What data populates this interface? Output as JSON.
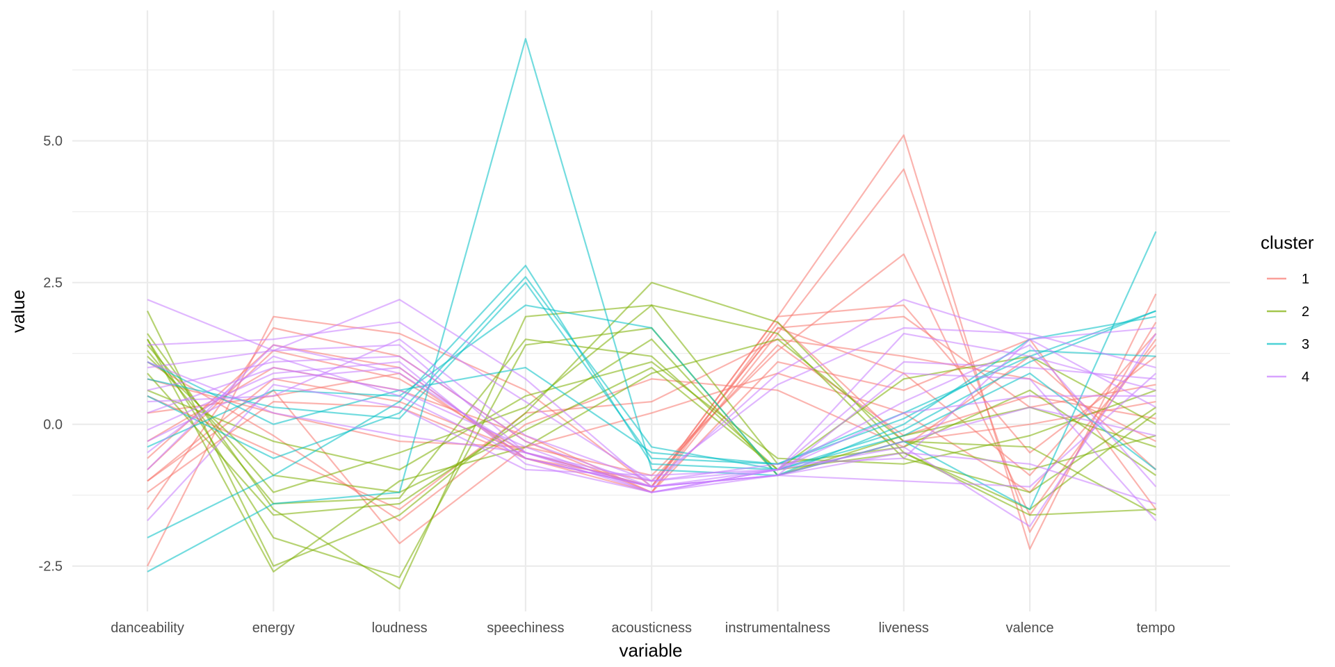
{
  "chart_data": {
    "type": "line",
    "subtype": "parallel-coordinates",
    "categories": [
      "danceability",
      "energy",
      "loudness",
      "speechiness",
      "acousticness",
      "instrumentalness",
      "liveness",
      "valence",
      "tempo"
    ],
    "xlabel": "variable",
    "ylabel": "value",
    "ylim": [
      -3.3,
      7.3
    ],
    "yticks": [
      -2.5,
      0.0,
      2.5,
      5.0
    ],
    "ytick_labels": [
      "-2.5",
      "0.0",
      "2.5",
      "5.0"
    ],
    "grid": true,
    "legend": {
      "title": "cluster",
      "position": "right",
      "entries": [
        {
          "label": "1",
          "color": "#F8766D"
        },
        {
          "label": "2",
          "color": "#7CAE00"
        },
        {
          "label": "3",
          "color": "#00BFC4"
        },
        {
          "label": "4",
          "color": "#C77CFF"
        }
      ]
    },
    "series": [
      {
        "cluster": "1",
        "values": [
          -2.5,
          1.9,
          1.6,
          0.6,
          -1.1,
          1.9,
          5.1,
          -2.2,
          2.3
        ]
      },
      {
        "cluster": "1",
        "values": [
          -1.5,
          1.7,
          1.2,
          -0.3,
          -1.2,
          1.6,
          4.5,
          -1.9,
          1.8
        ]
      },
      {
        "cluster": "1",
        "values": [
          -1.0,
          0.6,
          -2.1,
          -0.4,
          -0.9,
          1.3,
          3.0,
          -1.6,
          1.5
        ]
      },
      {
        "cluster": "1",
        "values": [
          -0.8,
          1.3,
          0.8,
          -0.5,
          -1.1,
          1.9,
          2.1,
          -0.5,
          1.2
        ]
      },
      {
        "cluster": "1",
        "values": [
          -1.2,
          0.4,
          0.3,
          -0.6,
          -1.1,
          1.7,
          1.9,
          0.3,
          0.7
        ]
      },
      {
        "cluster": "1",
        "values": [
          0.5,
          -0.5,
          -1.5,
          0.2,
          0.4,
          1.5,
          1.2,
          0.8,
          -0.3
        ]
      },
      {
        "cluster": "1",
        "values": [
          -0.3,
          1.0,
          0.6,
          -0.2,
          -1.2,
          1.1,
          0.6,
          1.5,
          -1.5
        ]
      },
      {
        "cluster": "1",
        "values": [
          0.8,
          0.2,
          -0.3,
          -0.4,
          0.2,
          0.9,
          0.2,
          -1.2,
          1.4
        ]
      },
      {
        "cluster": "1",
        "values": [
          -0.6,
          1.4,
          1.0,
          -0.6,
          -1.0,
          1.4,
          -0.2,
          0.5,
          0.1
        ]
      },
      {
        "cluster": "1",
        "values": [
          1.1,
          -0.2,
          -1.7,
          0.0,
          0.8,
          0.6,
          -0.4,
          1.2,
          -0.8
        ]
      },
      {
        "cluster": "1",
        "values": [
          -1.0,
          0.8,
          0.4,
          -0.5,
          -1.1,
          1.7,
          0.9,
          -0.9,
          1.6
        ]
      },
      {
        "cluster": "1",
        "values": [
          0.2,
          0.5,
          0.9,
          -0.6,
          -1.2,
          1.8,
          -0.3,
          0.0,
          0.4
        ]
      },
      {
        "cluster": "2",
        "values": [
          2.0,
          -2.5,
          -1.6,
          0.2,
          2.5,
          1.8,
          -0.5,
          -1.6,
          -1.5
        ]
      },
      {
        "cluster": "2",
        "values": [
          1.6,
          -1.5,
          -2.9,
          1.9,
          2.1,
          1.6,
          -0.6,
          -1.2,
          0.3
        ]
      },
      {
        "cluster": "2",
        "values": [
          1.5,
          -2.0,
          -2.7,
          1.4,
          1.7,
          -0.9,
          -0.3,
          -0.4,
          -1.6
        ]
      },
      {
        "cluster": "2",
        "values": [
          1.3,
          -1.4,
          -1.3,
          1.5,
          1.2,
          -0.8,
          0.8,
          1.2,
          0.0
        ]
      },
      {
        "cluster": "2",
        "values": [
          1.4,
          -1.2,
          -0.5,
          0.3,
          2.1,
          -0.7,
          -0.4,
          0.6,
          -0.9
        ]
      },
      {
        "cluster": "2",
        "values": [
          1.2,
          -0.9,
          -1.2,
          -0.1,
          1.0,
          -0.8,
          -0.5,
          -1.5,
          0.2
        ]
      },
      {
        "cluster": "2",
        "values": [
          0.9,
          -1.6,
          -1.4,
          0.1,
          1.5,
          -0.9,
          -0.2,
          0.3,
          -0.4
        ]
      },
      {
        "cluster": "2",
        "values": [
          0.6,
          -0.3,
          -0.8,
          0.5,
          1.1,
          -0.6,
          -0.7,
          -0.2,
          0.6
        ]
      },
      {
        "cluster": "2",
        "values": [
          1.5,
          -2.6,
          -1.0,
          -0.4,
          0.9,
          1.5,
          -0.3,
          -0.8,
          -0.2
        ]
      },
      {
        "cluster": "3",
        "values": [
          -2.6,
          -1.4,
          -1.2,
          6.8,
          -0.8,
          -0.9,
          -0.3,
          -1.5,
          3.4
        ]
      },
      {
        "cluster": "3",
        "values": [
          -2.0,
          -0.9,
          0.4,
          2.8,
          -0.7,
          -0.8,
          -0.1,
          1.1,
          2.0
        ]
      },
      {
        "cluster": "3",
        "values": [
          0.8,
          0.3,
          0.1,
          2.5,
          -0.6,
          -0.7,
          0.1,
          1.3,
          1.2
        ]
      },
      {
        "cluster": "3",
        "values": [
          -0.4,
          0.6,
          0.5,
          2.1,
          1.7,
          -0.9,
          0.0,
          1.5,
          1.9
        ]
      },
      {
        "cluster": "3",
        "values": [
          0.5,
          -0.6,
          0.2,
          2.6,
          -0.4,
          -0.8,
          -0.2,
          0.9,
          -0.8
        ]
      },
      {
        "cluster": "3",
        "values": [
          1.1,
          0.0,
          0.6,
          1.0,
          -0.5,
          -0.7,
          0.2,
          1.2,
          2.0
        ]
      },
      {
        "cluster": "4",
        "values": [
          2.2,
          1.3,
          2.2,
          0.8,
          -1.1,
          0.9,
          2.2,
          1.5,
          1.7
        ]
      },
      {
        "cluster": "4",
        "values": [
          1.4,
          1.5,
          1.8,
          0.4,
          -1.0,
          0.7,
          1.7,
          1.6,
          1.0
        ]
      },
      {
        "cluster": "4",
        "values": [
          1.0,
          1.3,
          1.4,
          -0.5,
          -1.2,
          -0.8,
          1.6,
          1.2,
          0.6
        ]
      },
      {
        "cluster": "4",
        "values": [
          0.6,
          1.1,
          1.2,
          -0.3,
          -1.1,
          -0.9,
          0.9,
          0.8,
          -1.7
        ]
      },
      {
        "cluster": "4",
        "values": [
          -0.3,
          0.8,
          1.0,
          -0.6,
          -1.1,
          -0.8,
          0.4,
          1.4,
          -1.1
        ]
      },
      {
        "cluster": "4",
        "values": [
          -0.8,
          1.4,
          0.9,
          -0.5,
          -1.0,
          -0.7,
          -0.6,
          1.5,
          0.3
        ]
      },
      {
        "cluster": "4",
        "values": [
          0.2,
          1.0,
          0.6,
          -0.4,
          -1.2,
          -0.9,
          -1.0,
          -1.1,
          0.9
        ]
      },
      {
        "cluster": "4",
        "values": [
          -1.7,
          0.7,
          0.3,
          -0.8,
          -0.9,
          -0.8,
          -0.4,
          -1.8,
          1.6
        ]
      },
      {
        "cluster": "4",
        "values": [
          -0.5,
          1.2,
          0.5,
          -0.6,
          -1.1,
          -0.9,
          -0.3,
          0.3,
          -0.2
        ]
      },
      {
        "cluster": "4",
        "values": [
          0.4,
          0.5,
          1.5,
          -0.2,
          -1.0,
          -0.8,
          1.1,
          1.0,
          0.8
        ]
      },
      {
        "cluster": "4",
        "values": [
          1.1,
          0.2,
          -0.2,
          -0.5,
          -1.1,
          -0.9,
          -0.5,
          -0.7,
          -1.4
        ]
      },
      {
        "cluster": "4",
        "values": [
          -0.1,
          0.9,
          1.1,
          -0.7,
          -1.2,
          -0.8,
          0.2,
          0.5,
          0.5
        ]
      }
    ]
  }
}
